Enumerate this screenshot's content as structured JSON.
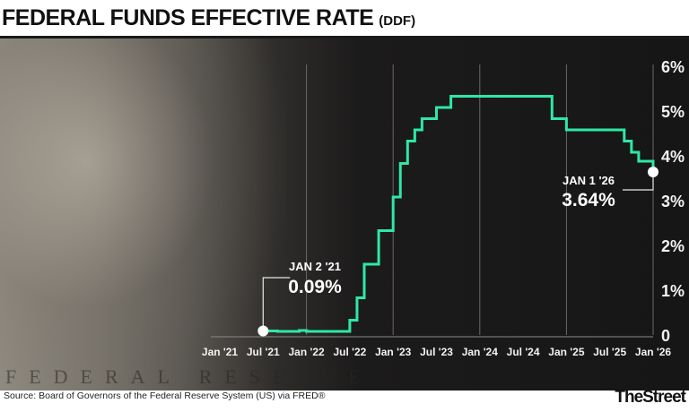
{
  "title": "FEDERAL FUNDS EFFECTIVE RATE",
  "title_suffix": "(DDF)",
  "source": "Source: Board of Governors of the Federal Reserve System (US) via FRED®",
  "logo": "TheStreet",
  "background_carving": "FEDERAL RESERVE",
  "chart_data": {
    "type": "line",
    "step": true,
    "title": "FEDERAL FUNDS EFFECTIVE RATE (DDF)",
    "xlabel": "",
    "ylabel": "",
    "x_ticks": [
      "Jan '21",
      "Jul '21",
      "Jan '22",
      "Jul '22",
      "Jan '23",
      "Jul '23",
      "Jan '24",
      "Jul '24",
      "Jan '25",
      "Jul '25",
      "Jan '26"
    ],
    "y_ticks": [
      "0",
      "1%",
      "2%",
      "3%",
      "4%",
      "5%",
      "6%"
    ],
    "ylim": [
      0,
      6
    ],
    "xlim": [
      "2021-01",
      "2026-01"
    ],
    "grid": "vertical, yearly",
    "line_color": "#2ee8a5",
    "series": [
      {
        "x": [
          "2021-07",
          "2021-09",
          "2021-12",
          "2022-01",
          "2022-03",
          "2022-07",
          "2022-08",
          "2022-09",
          "2022-11",
          "2023-01",
          "2023-02",
          "2023-03",
          "2023-04",
          "2023-05",
          "2023-07",
          "2023-09",
          "2024-10",
          "2024-11",
          "2025-01",
          "2025-09",
          "2025-10",
          "2025-11",
          "2026-01"
        ],
        "values": [
          0.09,
          0.08,
          0.1,
          0.08,
          0.08,
          0.33,
          0.83,
          1.58,
          2.33,
          3.08,
          3.83,
          4.33,
          4.58,
          4.83,
          5.08,
          5.33,
          5.33,
          4.83,
          4.58,
          4.33,
          4.08,
          3.88,
          3.64
        ]
      }
    ],
    "annotations": [
      {
        "label": "JAN 2 '21",
        "value": "0.09%"
      },
      {
        "label": "JAN 1 '26",
        "value": "3.64%"
      }
    ]
  }
}
